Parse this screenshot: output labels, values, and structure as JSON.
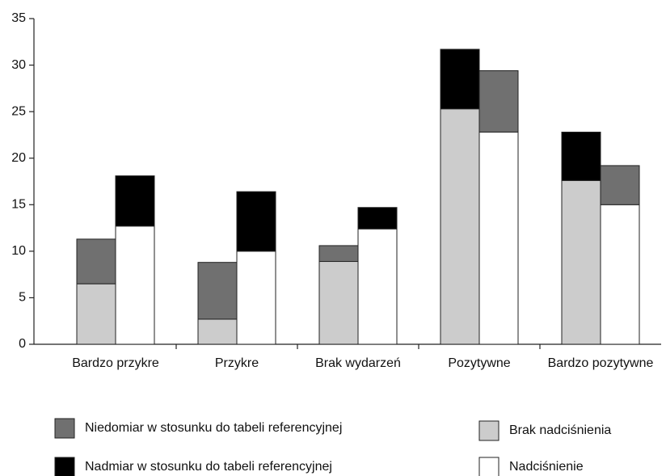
{
  "chart_data": {
    "type": "stacked_grouped_bar",
    "categories": [
      "Bardzo przykre",
      "Przykre",
      "Brak wydarzeń",
      "Pozytywne",
      "Bardzo pozytywne"
    ],
    "series": [
      {
        "name": "Brak nadciśnienia",
        "color": "#cccccc",
        "stack": [
          0,
          0,
          0,
          0,
          0
        ],
        "values": [
          6.5,
          2.7,
          8.9,
          25.3,
          17.6
        ]
      },
      {
        "name": "Nadciśnienie",
        "color": "#ffffff",
        "stack": [
          1,
          1,
          1,
          1,
          1
        ],
        "values": [
          12.7,
          10.0,
          12.4,
          22.8,
          15.0
        ]
      },
      {
        "name": "Niedomiar w stosunku do tabeli referencyjnej",
        "color": "#707070",
        "stack": [
          0,
          0,
          0,
          1,
          1
        ],
        "values": [
          4.8,
          6.1,
          1.7,
          6.6,
          4.2
        ]
      },
      {
        "name": "Nadmiar w stosunku do tabeli referencyjnej",
        "color": "#000000",
        "stack": [
          1,
          1,
          1,
          0,
          0
        ],
        "values": [
          5.4,
          6.4,
          2.3,
          6.4,
          5.2
        ]
      }
    ],
    "ylim": [
      0,
      35
    ],
    "yticks": [
      0,
      5,
      10,
      15,
      20,
      25,
      30,
      35
    ]
  }
}
